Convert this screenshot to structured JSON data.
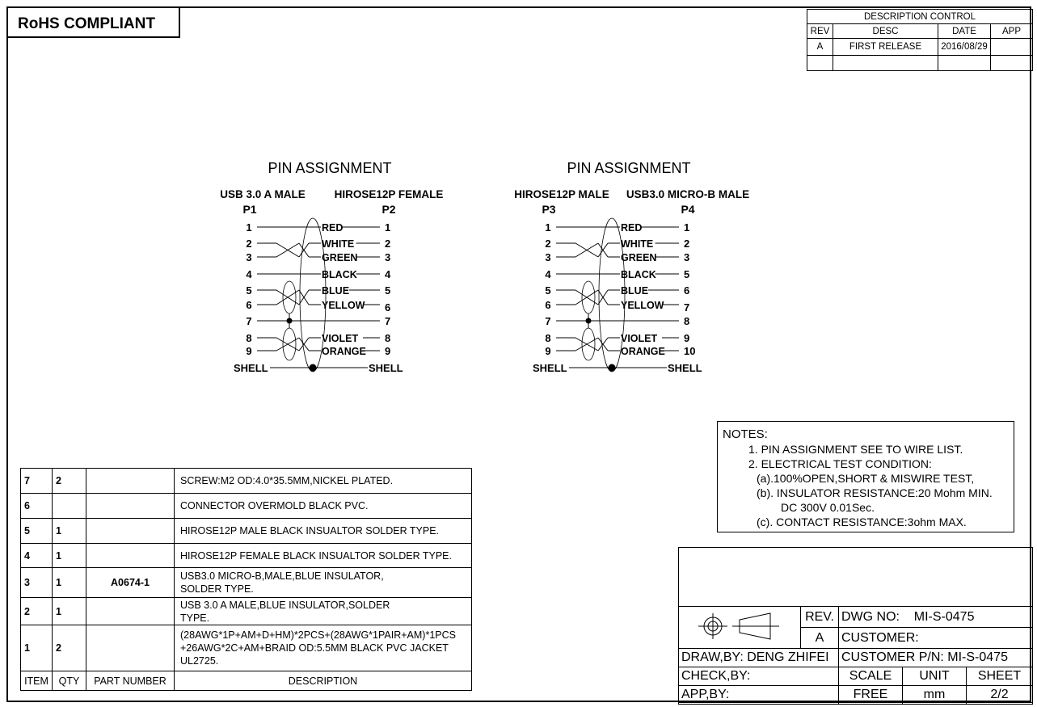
{
  "rohs": "RoHS COMPLIANT",
  "revision_control": {
    "title": "DESCRIPTION  CONTROL",
    "headers": [
      "REV",
      "DESC",
      "DATE",
      "APP"
    ],
    "rows": [
      [
        "A",
        "FIRST RELEASE",
        "2016/08/29",
        ""
      ],
      [
        "",
        "",
        "",
        ""
      ]
    ]
  },
  "diagrams": [
    {
      "title": "PIN   ASSIGNMENT",
      "left_connector": "USB 3.0 A MALE",
      "right_connector": "HIROSE12P FEMALE",
      "left_ref": "P1",
      "right_ref": "P2",
      "rows": [
        {
          "l": "1",
          "w": "RED",
          "r": "1"
        },
        {
          "l": "2",
          "w": "WHITE",
          "r": "2"
        },
        {
          "l": "3",
          "w": "GREEN",
          "r": "3"
        },
        {
          "l": "4",
          "w": "BLACK",
          "r": "4"
        },
        {
          "l": "5",
          "w": "BLUE",
          "r": "5"
        },
        {
          "l": "6",
          "w": "YELLOW",
          "r": "6"
        },
        {
          "l": "7",
          "w": "",
          "r": "7"
        },
        {
          "l": "8",
          "w": "VIOLET",
          "r": "8"
        },
        {
          "l": "9",
          "w": "ORANGE",
          "r": "9"
        }
      ],
      "shell_left": "SHELL",
      "shell_right": "SHELL"
    },
    {
      "title": "PIN   ASSIGNMENT",
      "left_connector": "HIROSE12P MALE",
      "right_connector": "USB3.0 MICRO-B MALE",
      "left_ref": "P3",
      "right_ref": "P4",
      "rows": [
        {
          "l": "1",
          "w": "RED",
          "r": "1"
        },
        {
          "l": "2",
          "w": "WHITE",
          "r": "2"
        },
        {
          "l": "3",
          "w": "GREEN",
          "r": "3"
        },
        {
          "l": "4",
          "w": "BLACK",
          "r": "5"
        },
        {
          "l": "5",
          "w": "BLUE",
          "r": "6"
        },
        {
          "l": "6",
          "w": "YELLOW",
          "r": "7"
        },
        {
          "l": "7",
          "w": "",
          "r": "8"
        },
        {
          "l": "8",
          "w": "VIOLET",
          "r": "9"
        },
        {
          "l": "9",
          "w": "ORANGE",
          "r": "10"
        }
      ],
      "shell_left": "SHELL",
      "shell_right": "SHELL"
    }
  ],
  "notes": {
    "title": "NOTES:",
    "lines": [
      "1. PIN ASSIGNMENT SEE TO WIRE LIST.",
      "2. ELECTRICAL TEST CONDITION:",
      "(a).100%OPEN,SHORT & MISWIRE TEST,",
      "(b). INSULATOR RESISTANCE:20 Mohm MIN.",
      "DC 300V 0.01Sec.",
      "(c). CONTACT RESISTANCE:3ohm MAX."
    ]
  },
  "bom": {
    "headers": [
      "ITEM",
      "QTY",
      "PART NUMBER",
      "DESCRIPTION"
    ],
    "rows": [
      [
        "7",
        "2",
        "",
        "SCREW:M2  OD:4.0*35.5MM,NICKEL PLATED."
      ],
      [
        "6",
        "",
        "",
        "CONNECTOR OVERMOLD BLACK PVC."
      ],
      [
        "5",
        "1",
        "",
        "HIROSE12P MALE BLACK INSUALTOR SOLDER TYPE."
      ],
      [
        "4",
        "1",
        "",
        "HIROSE12P FEMALE BLACK INSUALTOR SOLDER TYPE."
      ],
      [
        "3",
        "1",
        "A0674-1",
        "USB3.0 MICRO-B,MALE,BLUE INSULATOR,\nSOLDER TYPE."
      ],
      [
        "2",
        "1",
        "",
        "USB 3.0 A MALE,BLUE INSULATOR,SOLDER\nTYPE."
      ],
      [
        "1",
        "2",
        "",
        "(28AWG*1P+AM+D+HM)*2PCS+(28AWG*1PAIR+AM)*1PCS\n+26AWG*2C+AM+BRAID OD:5.5MM BLACK PVC JACKET\nUL2725."
      ]
    ]
  },
  "title_block": {
    "rev_label": "REV.",
    "rev": "A",
    "dwg_no_label": "DWG NO:",
    "dwg_no": "MI-S-0475",
    "customer": "CUSTOMER:",
    "draw_by": "DRAW,BY:  DENG ZHIFEI",
    "customer_pn": "CUSTOMER P/N: MI-S-0475",
    "check_by": "CHECK,BY:",
    "app_by": "APP,BY:",
    "scale_label": "SCALE",
    "scale": "FREE",
    "unit_label": "UNIT",
    "unit": "mm",
    "sheet_label": "SHEET",
    "sheet": "2/2"
  }
}
